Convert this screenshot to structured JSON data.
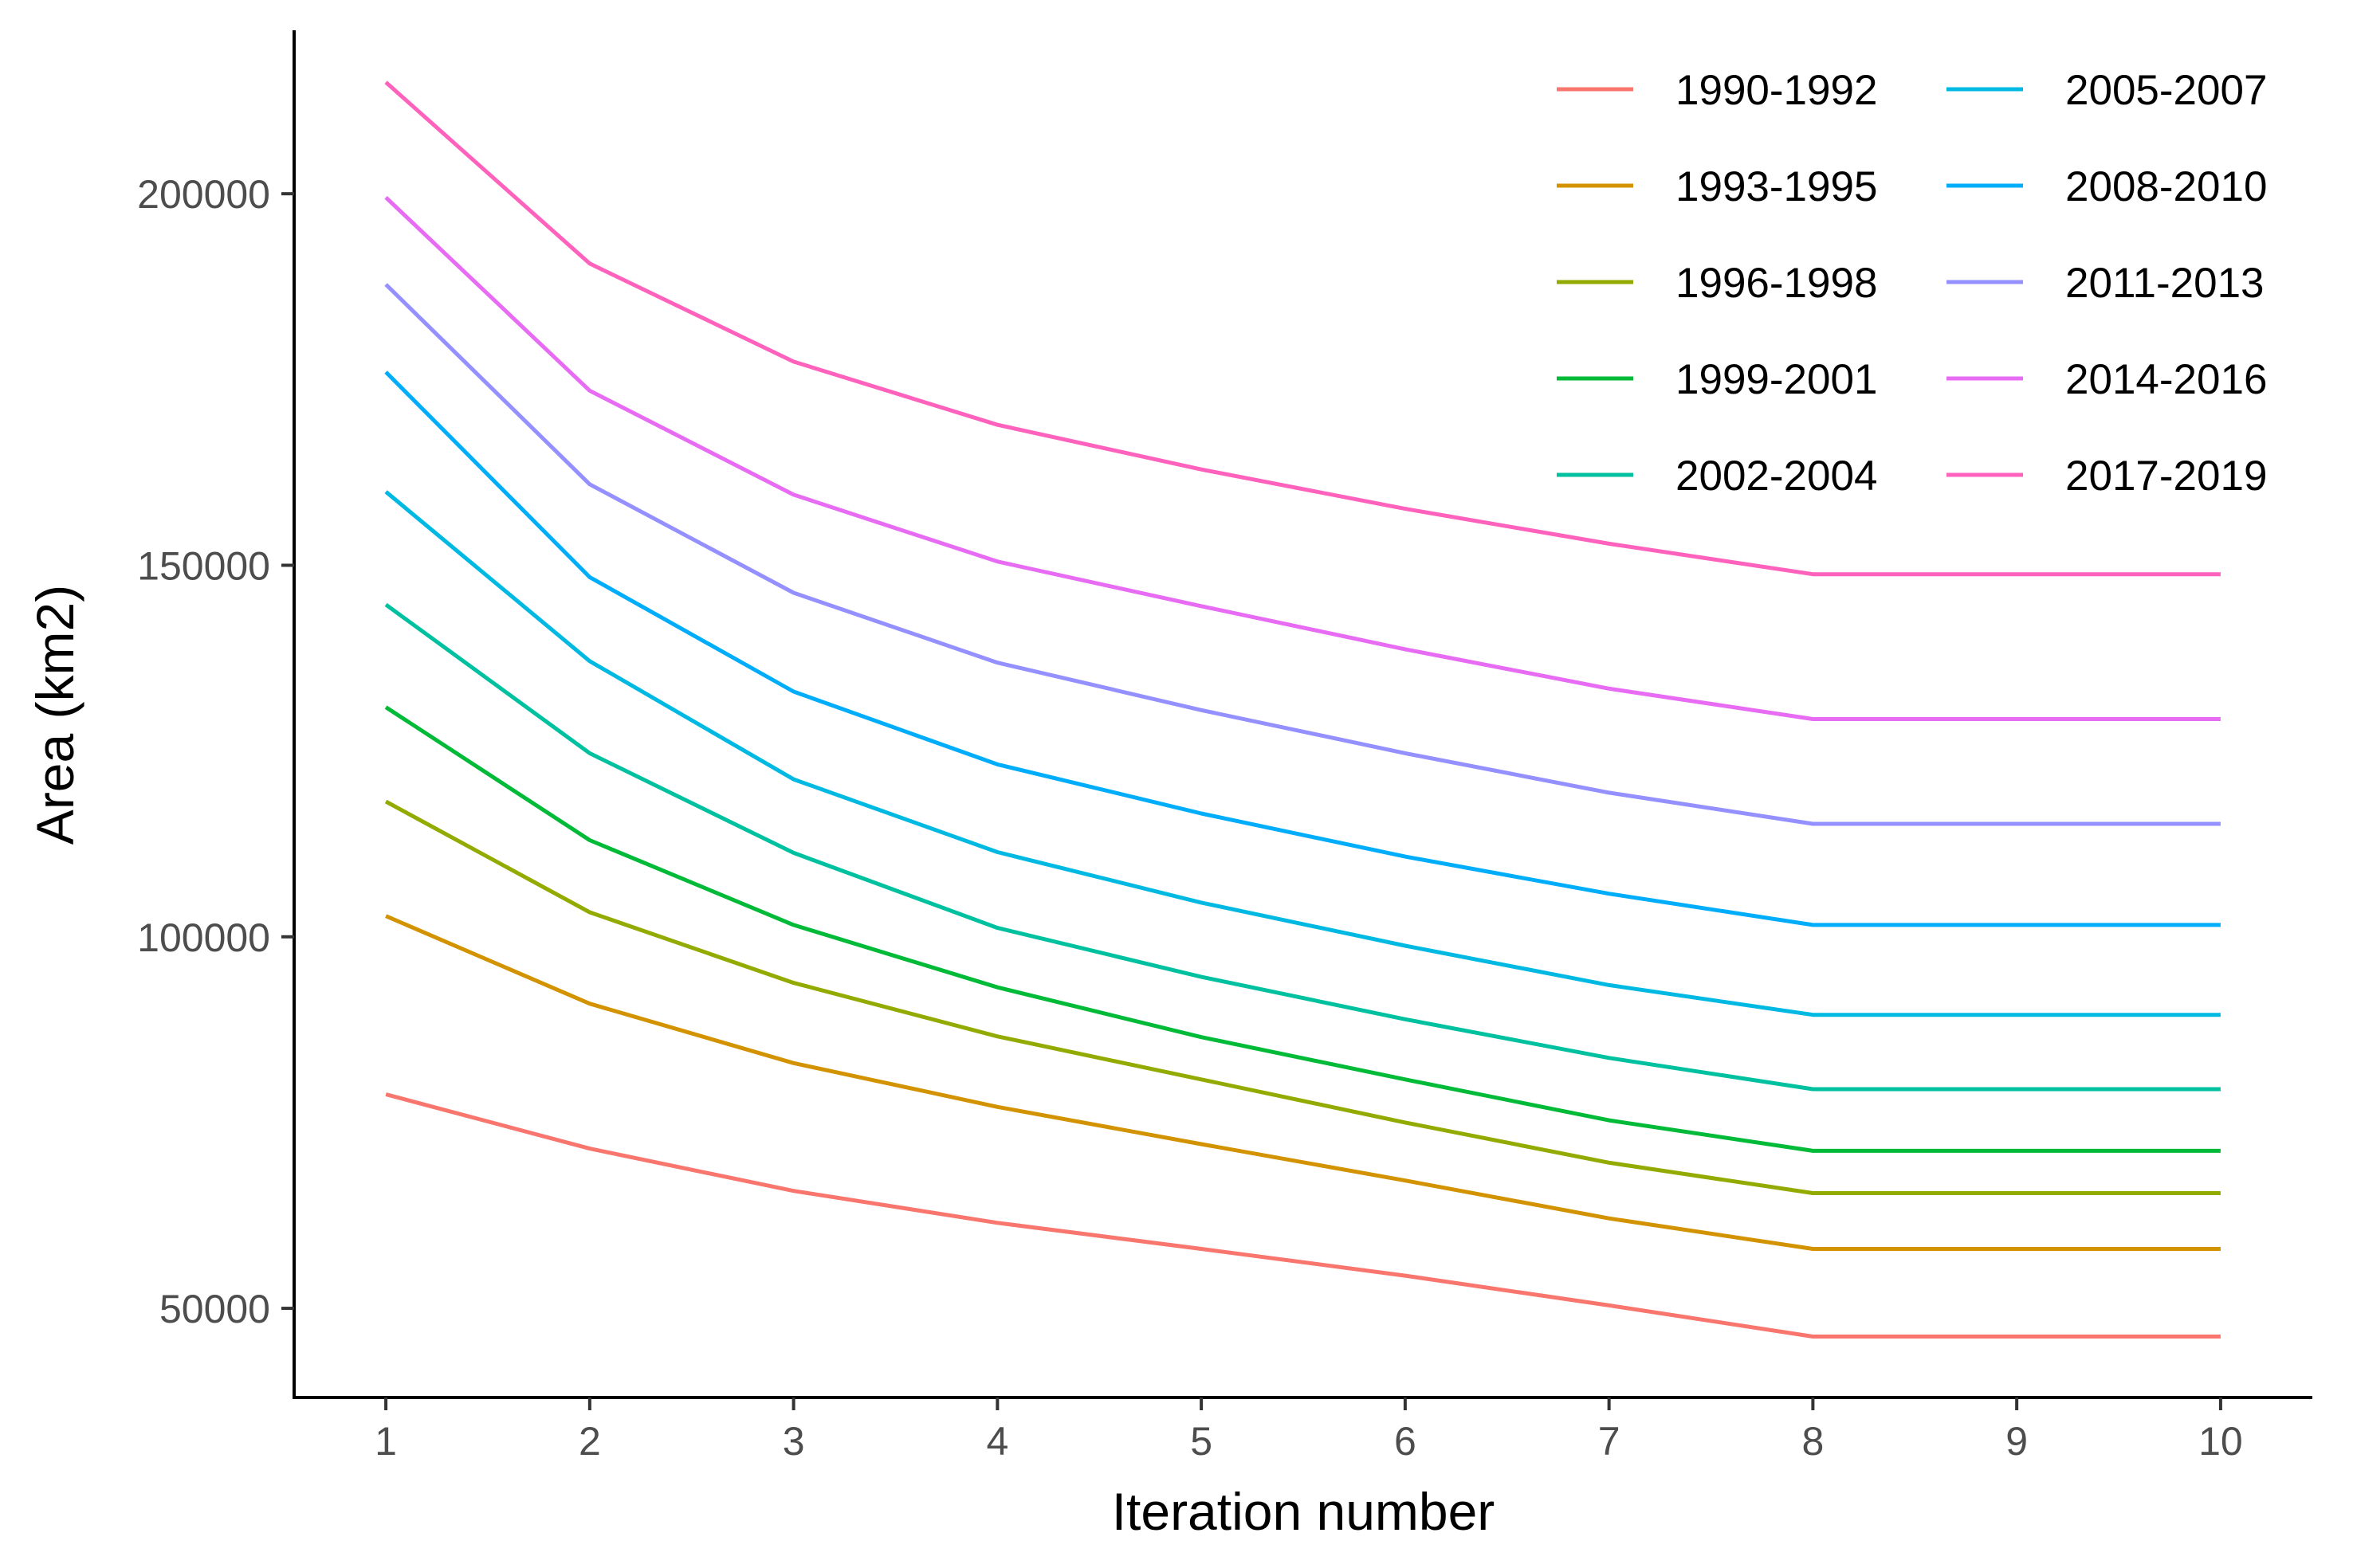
{
  "chart_data": {
    "type": "line",
    "xlabel": "Iteration number",
    "ylabel": "Area (km2)",
    "xlim": [
      0.55,
      10.45
    ],
    "ylim": [
      38000,
      222000
    ],
    "xticks": [
      "1",
      "2",
      "3",
      "4",
      "5",
      "6",
      "7",
      "8",
      "9",
      "10"
    ],
    "yticks": [
      "50000",
      "100000",
      "150000",
      "200000"
    ],
    "grid": false,
    "legend_position": "top-right",
    "x": [
      1,
      2,
      3,
      4,
      5,
      6,
      7,
      8,
      9,
      10
    ],
    "series": [
      {
        "name": "1990-1992",
        "color": "#F8766D",
        "values": [
          78800,
          71500,
          65800,
          61500,
          58000,
          54400,
          50400,
          46200,
          46200,
          46200
        ]
      },
      {
        "name": "1993-1995",
        "color": "#D39200",
        "values": [
          102800,
          91000,
          83000,
          77100,
          72100,
          67200,
          62100,
          58000,
          58000,
          58000
        ]
      },
      {
        "name": "1996-1998",
        "color": "#93AA00",
        "values": [
          118200,
          103300,
          93800,
          86600,
          80800,
          75000,
          69600,
          65500,
          65500,
          65500
        ]
      },
      {
        "name": "1999-2001",
        "color": "#00BA38",
        "values": [
          130900,
          113000,
          101600,
          93200,
          86500,
          80800,
          75300,
          71200,
          71200,
          71200
        ]
      },
      {
        "name": "2002-2004",
        "color": "#00C19F",
        "values": [
          144700,
          124700,
          111300,
          101200,
          94600,
          88900,
          83700,
          79500,
          79500,
          79500
        ]
      },
      {
        "name": "2005-2007",
        "color": "#00B9E3",
        "values": [
          159900,
          137100,
          121200,
          111400,
          104600,
          98800,
          93500,
          89500,
          89500,
          89500
        ]
      },
      {
        "name": "2008-2010",
        "color": "#00ADFA",
        "values": [
          176000,
          148400,
          133000,
          123200,
          116600,
          110800,
          105800,
          101600,
          101600,
          101600
        ]
      },
      {
        "name": "2011-2013",
        "color": "#9590FF",
        "values": [
          187800,
          160900,
          146300,
          136900,
          130500,
          124700,
          119400,
          115200,
          115200,
          115200
        ]
      },
      {
        "name": "2014-2016",
        "color": "#E76BF3",
        "values": [
          199500,
          173500,
          159500,
          150500,
          144500,
          138700,
          133400,
          129300,
          129300,
          129300
        ]
      },
      {
        "name": "2017-2019",
        "color": "#FF62BC",
        "values": [
          215000,
          190600,
          177400,
          168900,
          162900,
          157600,
          152900,
          148800,
          148800,
          148800
        ]
      }
    ]
  }
}
